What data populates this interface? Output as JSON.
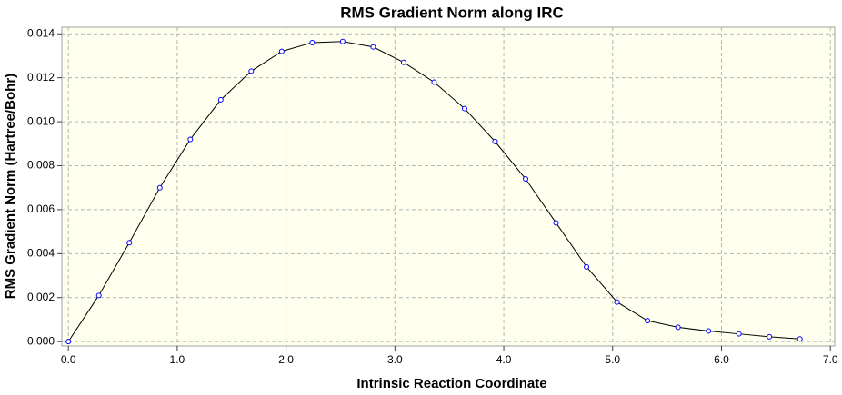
{
  "chart_data": {
    "type": "line",
    "title": "RMS Gradient Norm along IRC",
    "x_label": "Intrinsic Reaction Coordinate",
    "y_label": "RMS Gradient Norm (Hartree/Bohr)",
    "x": [
      0,
      0.28,
      0.56,
      0.84,
      1.12,
      1.4,
      1.68,
      1.96,
      2.24,
      2.52,
      2.8,
      3.08,
      3.36,
      3.64,
      3.92,
      4.2,
      4.48,
      4.76,
      5.04,
      5.32,
      5.6,
      5.88,
      6.16,
      6.44,
      6.72
    ],
    "values": [
      0,
      0.0021,
      0.0045,
      0.007,
      0.0092,
      0.011,
      0.0123,
      0.0132,
      0.0136,
      0.01365,
      0.0134,
      0.0127,
      0.0118,
      0.0106,
      0.0091,
      0.0074,
      0.0054,
      0.0034,
      0.0018,
      0.00095,
      0.00065,
      0.00048,
      0.00035,
      0.00022,
      0.00012
    ],
    "color": "#000000",
    "marker_color": "#0000ff",
    "xlim": [
      -0.06,
      7.04
    ],
    "ylim": [
      -0.0002,
      0.0143
    ],
    "xticks": [
      {
        "value": 0,
        "label": "0.0"
      },
      {
        "value": 1,
        "label": "1.0"
      },
      {
        "value": 2,
        "label": "2.0"
      },
      {
        "value": 3,
        "label": "3.0"
      },
      {
        "value": 4,
        "label": "4.0"
      },
      {
        "value": 5,
        "label": "5.0"
      },
      {
        "value": 6,
        "label": "6.0"
      },
      {
        "value": 7,
        "label": "7.0"
      }
    ],
    "yticks": [
      {
        "value": 0,
        "label": "0.000"
      },
      {
        "value": 0.002,
        "label": "0.002"
      },
      {
        "value": 0.004,
        "label": "0.004"
      },
      {
        "value": 0.006,
        "label": "0.006"
      },
      {
        "value": 0.008,
        "label": "0.008"
      },
      {
        "value": 0.01,
        "label": "0.010"
      },
      {
        "value": 0.012,
        "label": "0.012"
      },
      {
        "value": 0.014,
        "label": "0.014"
      }
    ],
    "grid": true
  }
}
